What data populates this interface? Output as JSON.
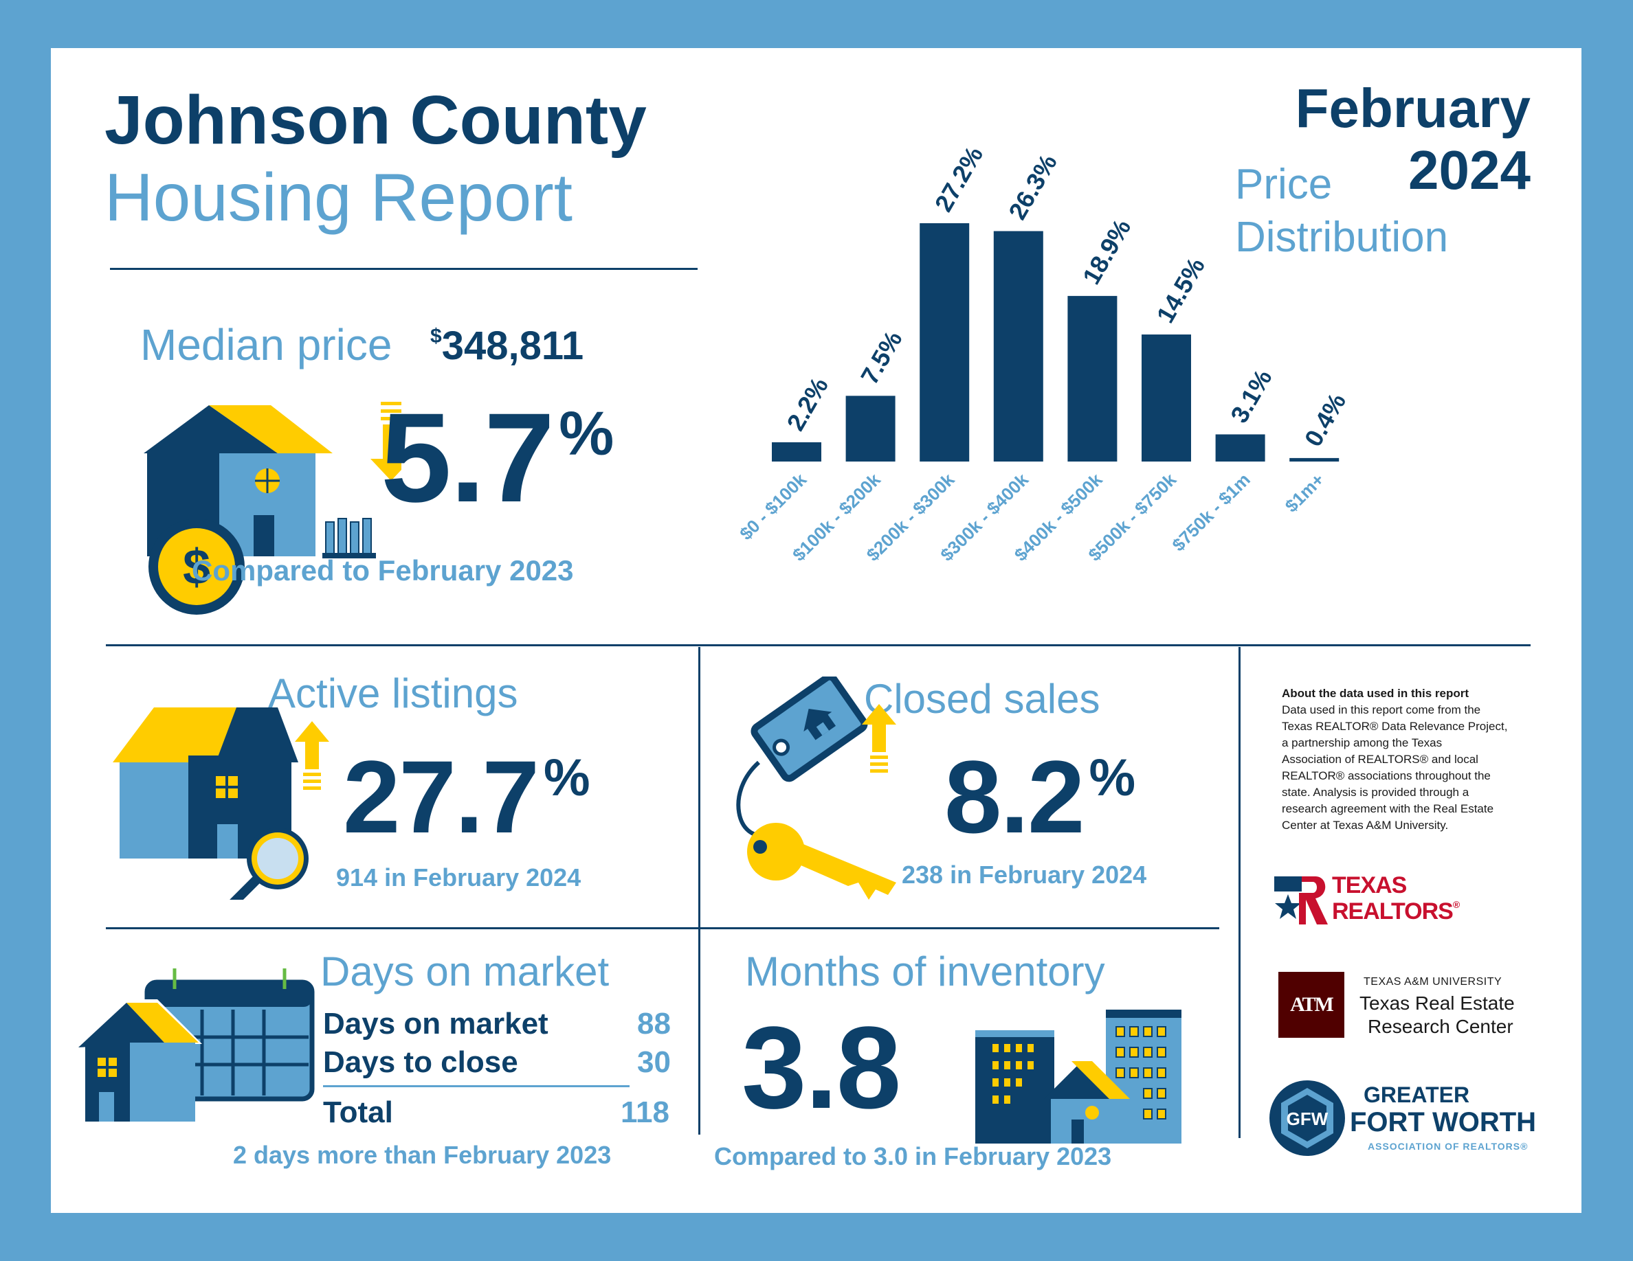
{
  "header": {
    "title_line1": "Johnson County",
    "title_line2": "Housing Report",
    "month": "February",
    "year": "2024"
  },
  "median": {
    "label": "Median price",
    "currency": "$",
    "value": "348,811",
    "change": "5.7",
    "pct": "%",
    "compare": "Compared to February 2023"
  },
  "active": {
    "label": "Active listings",
    "change": "27.7",
    "pct": "%",
    "sub": "914 in February 2024"
  },
  "closed": {
    "label": "Closed sales",
    "change": "8.2",
    "pct": "%",
    "sub": "238 in February 2024"
  },
  "dom": {
    "label": "Days on market",
    "rows": [
      {
        "label": "Days on market",
        "value": "88"
      },
      {
        "label": "Days to close",
        "value": "30"
      }
    ],
    "total_label": "Total",
    "total_value": "118",
    "sub": "2 days more than February 2023"
  },
  "inventory": {
    "label": "Months of inventory",
    "value": "3.8",
    "sub": "Compared to 3.0 in February 2023"
  },
  "about": {
    "title": "About the data used in this report",
    "lines": [
      "Data used in this report come from the",
      "Texas REALTOR® Data Relevance Project,",
      "a partnership among the Texas",
      "Association of REALTORS® and local",
      "REALTOR® associations throughout the",
      "state. Analysis is provided through a",
      "research agreement with the Real Estate",
      "Center at Texas A&M University."
    ]
  },
  "logos": {
    "tr_line1": "TEXAS",
    "tr_line2": "REALTORS",
    "tr_reg": "®",
    "tamu_mark": "ATM",
    "tamu_univ": "TEXAS A&M UNIVERSITY",
    "tamu_line1": "Texas Real Estate",
    "tamu_line2": "Research Center",
    "gfw_mark": "GFW",
    "gfw_line1": "GREATER",
    "gfw_line2": "FORT WORTH",
    "gfw_line3": "ASSOCIATION OF REALTORS®"
  },
  "colors": {
    "navy": "#0d4069",
    "light_blue": "#5da3d0",
    "yellow": "#ffcc00",
    "frame": "#5da3d0"
  },
  "chart_data": {
    "type": "bar",
    "title": "Price Distribution",
    "title_line1": "Price",
    "title_line2": "Distribution",
    "categories": [
      "$0 - $100k",
      "$100k - $200k",
      "$200k - $300k",
      "$300k - $400k",
      "$400k - $500k",
      "$500k - $750k",
      "$750k - $1m",
      "$1m+"
    ],
    "values": [
      2.2,
      7.5,
      27.2,
      26.3,
      18.9,
      14.5,
      3.1,
      0.4
    ],
    "labels": [
      "2.2%",
      "7.5%",
      "27.2%",
      "26.3%",
      "18.9%",
      "14.5%",
      "3.1%",
      "0.4%"
    ],
    "unit": "%",
    "ylim": [
      0,
      27.2
    ],
    "grid": false,
    "legend": "none",
    "bar_color": "#0d4069",
    "label_color": "#0d4069",
    "tick_color": "#5da3d0"
  }
}
